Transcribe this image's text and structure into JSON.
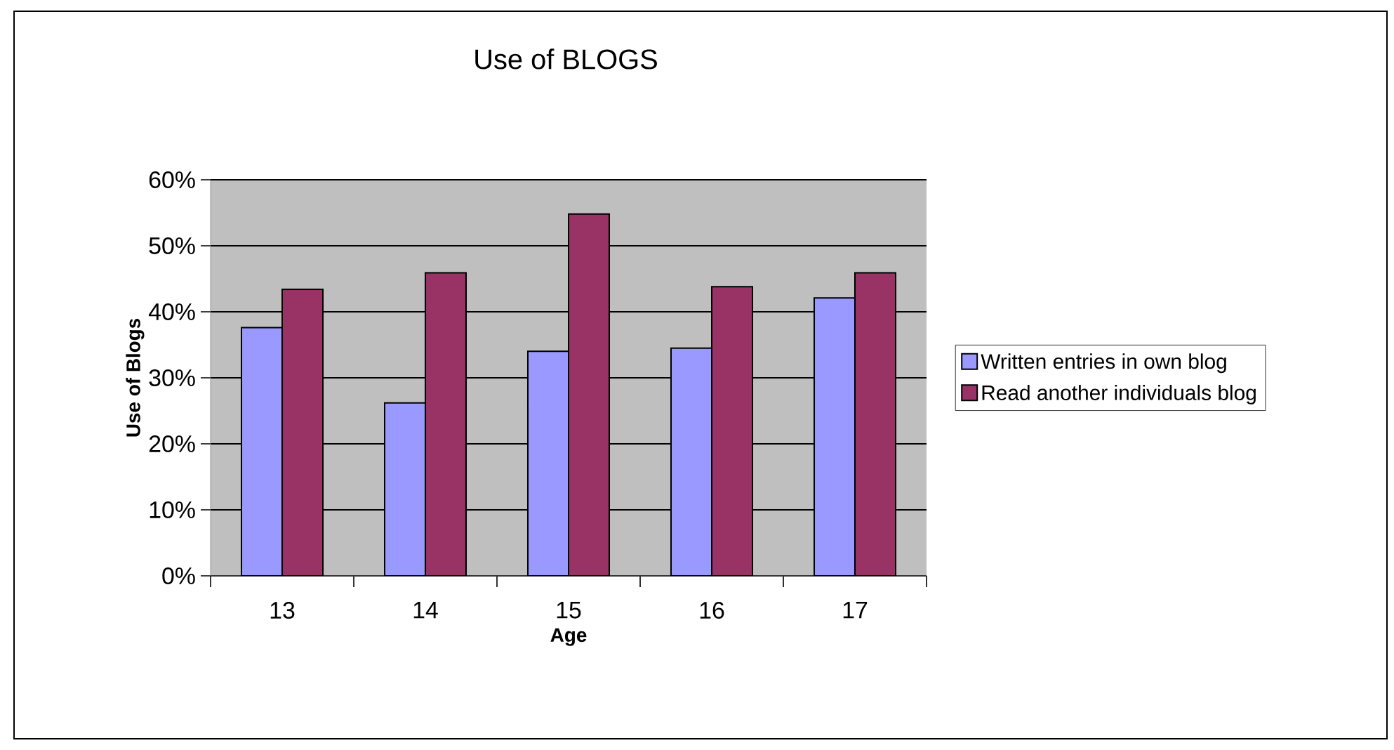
{
  "chart_data": {
    "type": "bar",
    "title": "Use of BLOGS",
    "xlabel": "Age",
    "ylabel": "Use of Blogs",
    "categories": [
      "13",
      "14",
      "15",
      "16",
      "17"
    ],
    "series": [
      {
        "name": "Written entries in own blog",
        "color": "#9999ff",
        "values": [
          37.6,
          26.2,
          34.0,
          34.5,
          42.1
        ]
      },
      {
        "name": "Read another individuals blog",
        "color": "#993366",
        "values": [
          43.4,
          45.9,
          54.8,
          43.8,
          45.9
        ]
      }
    ],
    "ylim": [
      0,
      60
    ],
    "yticks": [
      {
        "value": 0,
        "label": "0%"
      },
      {
        "value": 10,
        "label": "10%"
      },
      {
        "value": 20,
        "label": "20%"
      },
      {
        "value": 30,
        "label": "30%"
      },
      {
        "value": 40,
        "label": "40%"
      },
      {
        "value": 50,
        "label": "50%"
      },
      {
        "value": 60,
        "label": "60%"
      }
    ],
    "grid": "y",
    "legend": "right"
  }
}
